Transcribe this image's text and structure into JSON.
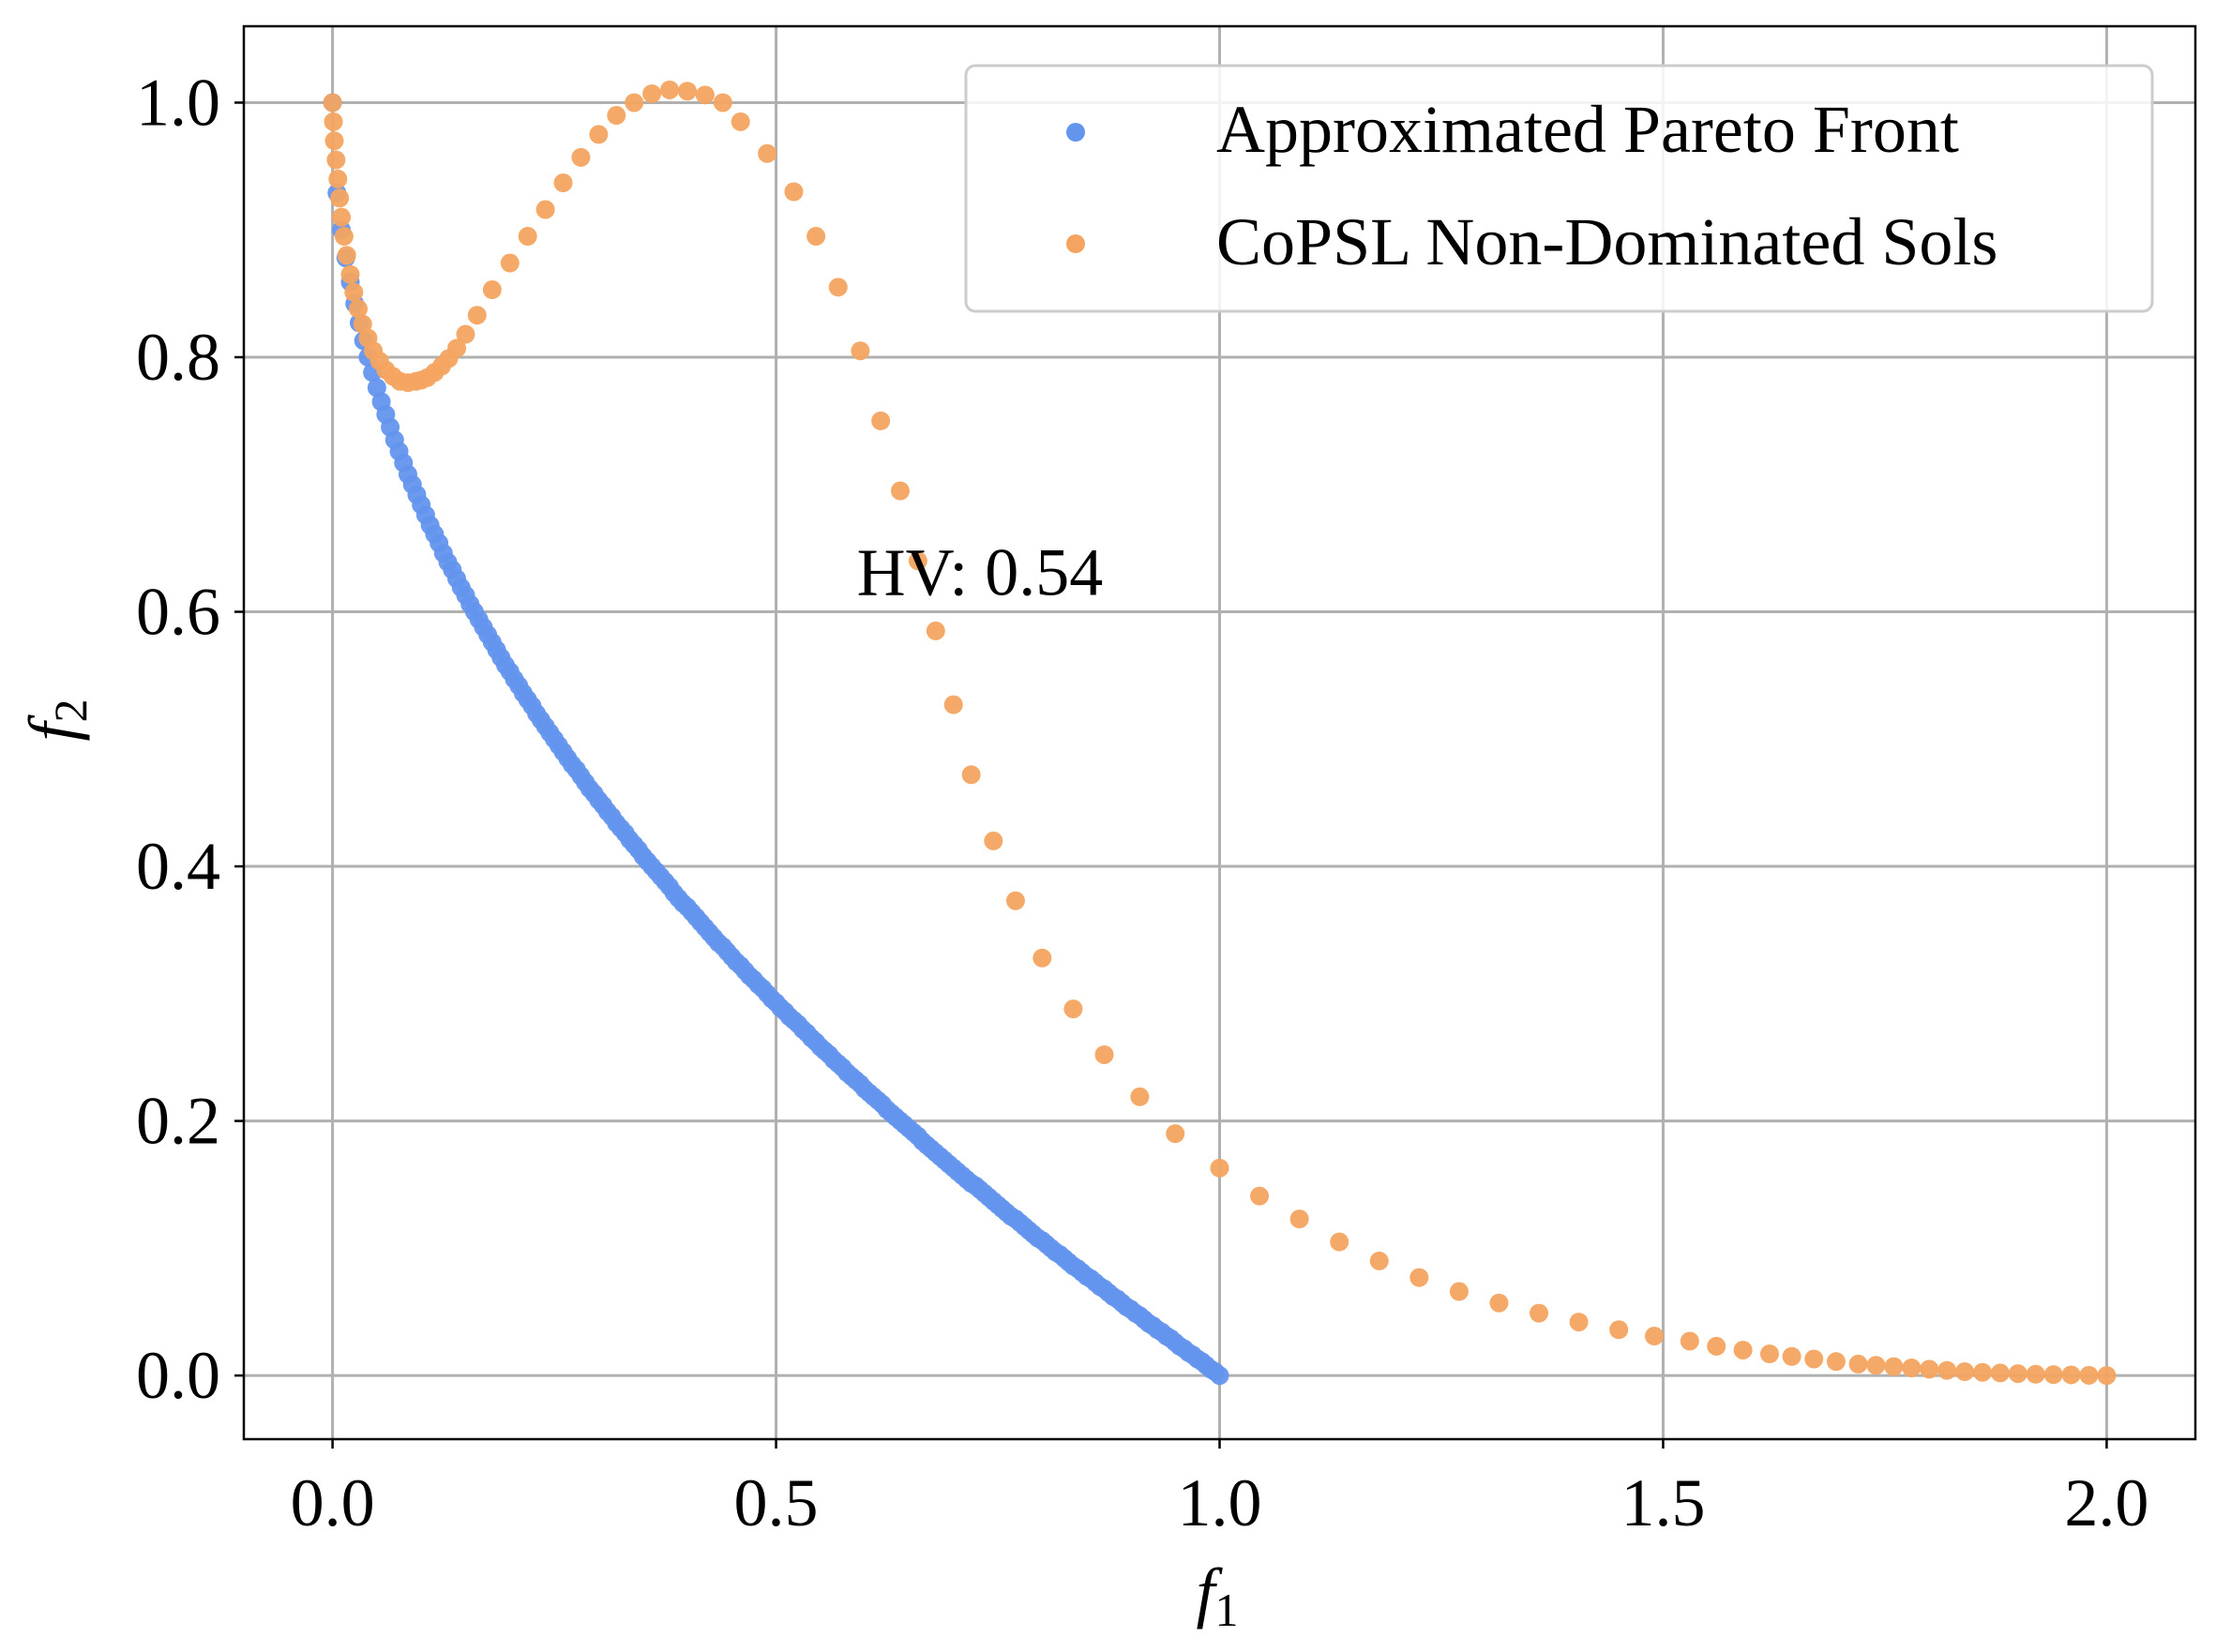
{
  "chart_data": {
    "type": "scatter",
    "title": "",
    "xlabel_italic": "f",
    "xlabel_sub": "1",
    "ylabel_italic": "f",
    "ylabel_sub": "2",
    "xlim": [
      -0.1,
      2.1
    ],
    "ylim": [
      -0.05,
      1.06
    ],
    "xticks": [
      0.0,
      0.5,
      1.0,
      1.5,
      2.0
    ],
    "xtick_labels": [
      "0.0",
      "0.5",
      "1.0",
      "1.5",
      "2.0"
    ],
    "yticks": [
      0.0,
      0.2,
      0.4,
      0.6,
      0.8,
      1.0
    ],
    "ytick_labels": [
      "0.0",
      "0.2",
      "0.4",
      "0.6",
      "0.8",
      "1.0"
    ],
    "grid": true,
    "legend_position": "top-right",
    "annotation": {
      "text": "HV: 0.54",
      "x": 0.61,
      "y": 0.628
    },
    "series": [
      {
        "name": "Approximated Pareto Front",
        "color": "#6495ED",
        "x": [
          0.0,
          0.005,
          0.01,
          0.015,
          0.02,
          0.025,
          0.03,
          0.035,
          0.04,
          0.045,
          0.05,
          0.055,
          0.06,
          0.065,
          0.07,
          0.075,
          0.08,
          0.085,
          0.09,
          0.095,
          0.1,
          0.105,
          0.11,
          0.115,
          0.12,
          0.125,
          0.13,
          0.135,
          0.14,
          0.145,
          0.15,
          0.155,
          0.16,
          0.165,
          0.17,
          0.175,
          0.18,
          0.185,
          0.19,
          0.195,
          0.2,
          0.205,
          0.21,
          0.215,
          0.22,
          0.225,
          0.23,
          0.235,
          0.24,
          0.245,
          0.25,
          0.255,
          0.26,
          0.265,
          0.27,
          0.275,
          0.28,
          0.285,
          0.29,
          0.295,
          0.3,
          0.305,
          0.31,
          0.315,
          0.32,
          0.325,
          0.33,
          0.335,
          0.34,
          0.345,
          0.35,
          0.355,
          0.36,
          0.365,
          0.37,
          0.375,
          0.38,
          0.385,
          0.39,
          0.395,
          0.4,
          0.405,
          0.41,
          0.415,
          0.42,
          0.425,
          0.43,
          0.435,
          0.44,
          0.445,
          0.45,
          0.455,
          0.46,
          0.465,
          0.47,
          0.475,
          0.48,
          0.485,
          0.49,
          0.495,
          0.5,
          0.505,
          0.51,
          0.515,
          0.52,
          0.525,
          0.53,
          0.535,
          0.54,
          0.545,
          0.55,
          0.555,
          0.56,
          0.565,
          0.57,
          0.575,
          0.58,
          0.585,
          0.59,
          0.595,
          0.6,
          0.605,
          0.61,
          0.615,
          0.62,
          0.625,
          0.63,
          0.635,
          0.64,
          0.645,
          0.65,
          0.655,
          0.66,
          0.665,
          0.67,
          0.675,
          0.68,
          0.685,
          0.69,
          0.695,
          0.7,
          0.705,
          0.71,
          0.715,
          0.72,
          0.725,
          0.73,
          0.735,
          0.74,
          0.745,
          0.75,
          0.755,
          0.76,
          0.765,
          0.77,
          0.775,
          0.78,
          0.785,
          0.79,
          0.795,
          0.8,
          0.805,
          0.81,
          0.815,
          0.82,
          0.825,
          0.83,
          0.835,
          0.84,
          0.845,
          0.85,
          0.855,
          0.86,
          0.865,
          0.87,
          0.875,
          0.88,
          0.885,
          0.89,
          0.895,
          0.9,
          0.905,
          0.91,
          0.915,
          0.92,
          0.925,
          0.93,
          0.935,
          0.94,
          0.945,
          0.95,
          0.955,
          0.96,
          0.965,
          0.97,
          0.975,
          0.98,
          0.985,
          0.99,
          0.995,
          1.0
        ],
        "y": [
          1.0,
          0.929,
          0.9,
          0.878,
          0.859,
          0.842,
          0.827,
          0.813,
          0.8,
          0.788,
          0.776,
          0.765,
          0.755,
          0.745,
          0.735,
          0.726,
          0.717,
          0.708,
          0.7,
          0.692,
          0.684,
          0.676,
          0.668,
          0.661,
          0.654,
          0.646,
          0.639,
          0.633,
          0.626,
          0.619,
          0.613,
          0.606,
          0.6,
          0.594,
          0.588,
          0.582,
          0.576,
          0.57,
          0.564,
          0.558,
          0.553,
          0.547,
          0.542,
          0.536,
          0.531,
          0.526,
          0.52,
          0.515,
          0.51,
          0.505,
          0.5,
          0.495,
          0.49,
          0.485,
          0.48,
          0.476,
          0.471,
          0.466,
          0.461,
          0.457,
          0.452,
          0.448,
          0.443,
          0.439,
          0.434,
          0.43,
          0.426,
          0.421,
          0.417,
          0.413,
          0.408,
          0.404,
          0.4,
          0.396,
          0.392,
          0.388,
          0.384,
          0.379,
          0.375,
          0.371,
          0.368,
          0.364,
          0.36,
          0.356,
          0.352,
          0.348,
          0.344,
          0.34,
          0.337,
          0.333,
          0.329,
          0.325,
          0.322,
          0.318,
          0.314,
          0.311,
          0.307,
          0.304,
          0.3,
          0.296,
          0.293,
          0.289,
          0.286,
          0.282,
          0.279,
          0.276,
          0.272,
          0.269,
          0.265,
          0.262,
          0.258,
          0.255,
          0.252,
          0.248,
          0.245,
          0.242,
          0.238,
          0.235,
          0.232,
          0.229,
          0.225,
          0.222,
          0.219,
          0.216,
          0.213,
          0.209,
          0.206,
          0.203,
          0.2,
          0.197,
          0.194,
          0.191,
          0.188,
          0.184,
          0.181,
          0.178,
          0.175,
          0.172,
          0.169,
          0.166,
          0.163,
          0.16,
          0.157,
          0.154,
          0.151,
          0.149,
          0.146,
          0.143,
          0.14,
          0.137,
          0.134,
          0.131,
          0.128,
          0.125,
          0.123,
          0.12,
          0.117,
          0.114,
          0.111,
          0.108,
          0.106,
          0.103,
          0.1,
          0.097,
          0.095,
          0.092,
          0.089,
          0.086,
          0.084,
          0.081,
          0.078,
          0.076,
          0.073,
          0.07,
          0.068,
          0.065,
          0.062,
          0.06,
          0.057,
          0.054,
          0.052,
          0.049,
          0.047,
          0.044,
          0.041,
          0.039,
          0.036,
          0.034,
          0.031,
          0.029,
          0.026,
          0.023,
          0.021,
          0.018,
          0.016,
          0.013,
          0.011,
          0.008,
          0.005,
          0.003,
          0.0
        ]
      },
      {
        "name": "CoPSL Non-Dominated Sols",
        "color": "#F4A460",
        "x": [
          0.0,
          0.001,
          0.002,
          0.004,
          0.006,
          0.008,
          0.01,
          0.013,
          0.016,
          0.02,
          0.024,
          0.029,
          0.034,
          0.04,
          0.046,
          0.053,
          0.06,
          0.068,
          0.076,
          0.085,
          0.094,
          0.1,
          0.107,
          0.115,
          0.123,
          0.131,
          0.14,
          0.15,
          0.163,
          0.18,
          0.2,
          0.22,
          0.24,
          0.26,
          0.28,
          0.3,
          0.32,
          0.34,
          0.36,
          0.38,
          0.4,
          0.42,
          0.44,
          0.46,
          0.49,
          0.52,
          0.545,
          0.57,
          0.595,
          0.618,
          0.64,
          0.66,
          0.68,
          0.7,
          0.72,
          0.745,
          0.77,
          0.8,
          0.835,
          0.87,
          0.91,
          0.95,
          1.0,
          1.045,
          1.09,
          1.135,
          1.18,
          1.225,
          1.27,
          1.315,
          1.36,
          1.405,
          1.45,
          1.49,
          1.53,
          1.56,
          1.59,
          1.62,
          1.645,
          1.67,
          1.695,
          1.72,
          1.74,
          1.76,
          1.78,
          1.8,
          1.82,
          1.84,
          1.86,
          1.88,
          1.9,
          1.92,
          1.94,
          1.96,
          1.98,
          2.0
        ],
        "y": [
          1.0,
          0.985,
          0.97,
          0.955,
          0.94,
          0.925,
          0.91,
          0.895,
          0.88,
          0.865,
          0.851,
          0.838,
          0.826,
          0.815,
          0.805,
          0.797,
          0.79,
          0.785,
          0.781,
          0.78,
          0.781,
          0.782,
          0.784,
          0.788,
          0.793,
          0.799,
          0.807,
          0.818,
          0.833,
          0.853,
          0.874,
          0.895,
          0.916,
          0.937,
          0.957,
          0.975,
          0.99,
          1.0,
          1.007,
          1.01,
          1.009,
          1.006,
          1.0,
          0.985,
          0.96,
          0.93,
          0.895,
          0.855,
          0.805,
          0.75,
          0.695,
          0.64,
          0.585,
          0.527,
          0.472,
          0.42,
          0.373,
          0.328,
          0.288,
          0.252,
          0.219,
          0.19,
          0.163,
          0.141,
          0.123,
          0.105,
          0.09,
          0.077,
          0.066,
          0.057,
          0.049,
          0.042,
          0.036,
          0.031,
          0.027,
          0.023,
          0.02,
          0.017,
          0.015,
          0.013,
          0.011,
          0.009,
          0.008,
          0.007,
          0.006,
          0.005,
          0.004,
          0.003,
          0.0025,
          0.002,
          0.0015,
          0.001,
          0.0007,
          0.0005,
          0.0002,
          0.0
        ]
      }
    ]
  }
}
